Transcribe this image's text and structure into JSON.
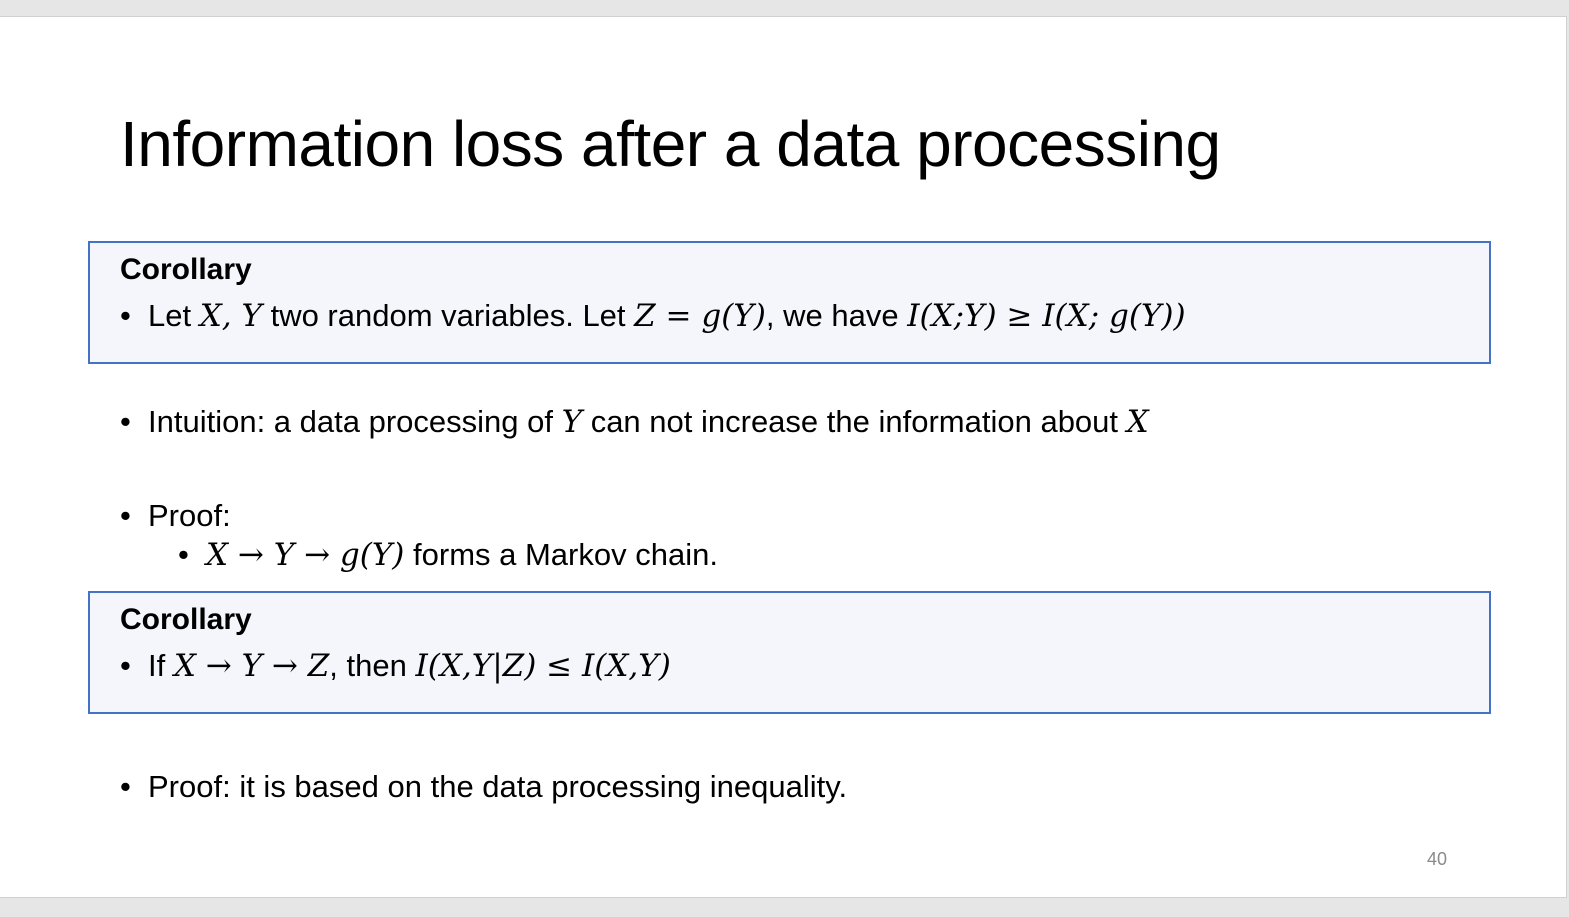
{
  "slide": {
    "title": "Information loss after a data processing",
    "page_number": "40",
    "corollary1": {
      "heading": "Corollary",
      "bullet": "•",
      "text_a": "Let ",
      "math_a": "X, Y",
      "text_b": " two random variables. Let ",
      "math_b": "Z  =  g(Y)",
      "text_c": ", we have ",
      "math_c": "I(X;Y) ≥ I(X; g(Y))"
    },
    "intuition": {
      "bullet": "•",
      "text_a": "Intuition: a data processing of ",
      "math_a": "Y",
      "text_b": " can not increase the information about ",
      "math_b": "X"
    },
    "proof1": {
      "bullet": "•",
      "label": "Proof:",
      "sub_bullet": "•",
      "sub_math": "X → Y → g(Y)",
      "sub_text": " forms a Markov chain."
    },
    "corollary2": {
      "heading": "Corollary",
      "bullet": "•",
      "text_a": "If ",
      "math_a": "X  →  Y  →  Z",
      "text_b": ", then ",
      "math_b": "I(X,Y|Z) ≤ I(X,Y)"
    },
    "proof2": {
      "bullet": "•",
      "text": "Proof:  it is based on the data processing inequality."
    }
  }
}
